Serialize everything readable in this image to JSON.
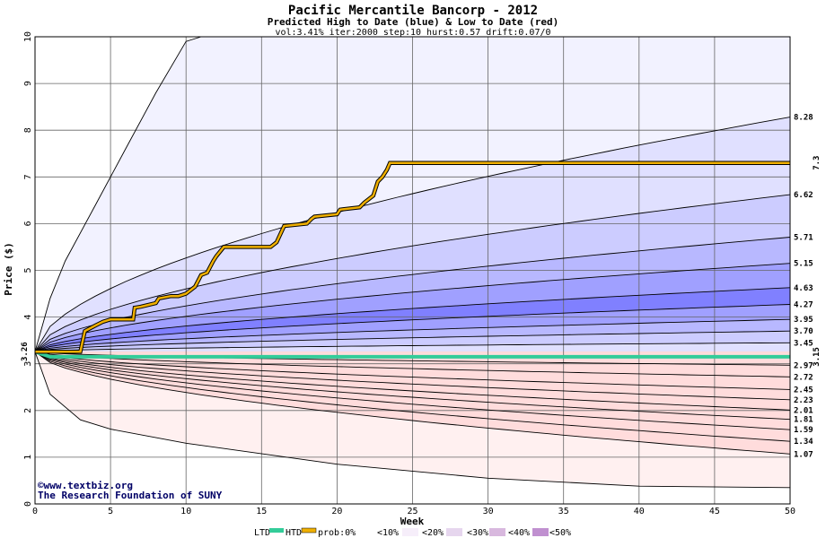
{
  "header": {
    "title": "Pacific Mercantile Bancorp - 2012",
    "subtitle": "Predicted High to Date (blue) &  Low to Date (red)",
    "params": "vol:3.41% iter:2000 step:10 hurst:0.57 drift:0.07/0"
  },
  "credits": {
    "line1": "©www.textbiz.org",
    "line2": "The Research Foundation of SUNY"
  },
  "legend": {
    "ltd": "LTD",
    "htd": "HTD",
    "prob": "prob:0%",
    "p10": "<10%",
    "p20": "<20%",
    "p30": "<30%",
    "p40": "<40%",
    "p50": "<50%"
  },
  "colors": {
    "htd_line": "#f0b000",
    "ltd_line": "#33cc99",
    "blue_bands": [
      "#f2f2ff",
      "#e0e0ff",
      "#ccccff",
      "#b8b8ff",
      "#a0a0ff",
      "#8080ff"
    ],
    "red_bands": [
      "#fff0f0",
      "#ffdcdc",
      "#ffc8c8",
      "#ffb0b0",
      "#ff9494",
      "#ff7878"
    ],
    "htd_value": "#b08000",
    "ltd_value": "#008866"
  },
  "chart_data": {
    "type": "area",
    "title": "Pacific Mercantile Bancorp - 2012",
    "subtitle": "Predicted High to Date (blue) &  Low to Date (red)",
    "xlabel": "Week",
    "ylabel": "Price ($)",
    "xlim": [
      0,
      50
    ],
    "ylim": [
      0,
      10
    ],
    "xticks": [
      0,
      5,
      10,
      15,
      20,
      25,
      30,
      35,
      40,
      45,
      50
    ],
    "yticks": [
      0,
      1,
      2,
      3,
      4,
      5,
      6,
      7,
      8,
      9,
      10
    ],
    "grid": true,
    "start_price": 3.26,
    "start_label": "3.26",
    "high_quantiles": [
      {
        "label": "8.28",
        "end": 8.28
      },
      {
        "label": "6.62",
        "end": 6.62
      },
      {
        "label": "5.71",
        "end": 5.71
      },
      {
        "label": "5.15",
        "end": 5.15
      },
      {
        "label": "4.63",
        "end": 4.63
      },
      {
        "label": "4.27",
        "end": 4.27
      },
      {
        "label": "3.95",
        "end": 3.95
      },
      {
        "label": "3.70",
        "end": 3.7
      },
      {
        "label": "3.45",
        "end": 3.45
      }
    ],
    "low_quantiles": [
      {
        "label": "2.97",
        "end": 2.97
      },
      {
        "label": "2.72",
        "end": 2.72
      },
      {
        "label": "2.45",
        "end": 2.45
      },
      {
        "label": "2.23",
        "end": 2.23
      },
      {
        "label": "2.01",
        "end": 2.01
      },
      {
        "label": "1.81",
        "end": 1.81
      },
      {
        "label": "1.59",
        "end": 1.59
      },
      {
        "label": "1.34",
        "end": 1.34
      },
      {
        "label": "1.07",
        "end": 1.07
      }
    ],
    "outer_high": {
      "x": [
        0,
        1,
        2,
        4,
        6,
        8,
        10,
        11
      ],
      "y": [
        3.26,
        4.4,
        5.2,
        6.4,
        7.6,
        8.8,
        9.9,
        10.0
      ]
    },
    "outer_low": {
      "x": [
        0,
        1,
        3,
        5,
        10,
        20,
        30,
        40,
        50
      ],
      "y": [
        3.26,
        2.35,
        1.8,
        1.6,
        1.3,
        0.85,
        0.55,
        0.38,
        0.35
      ]
    },
    "htd_line": {
      "name": "HTD",
      "value_label": "7.3",
      "x": [
        0,
        3,
        3.3,
        4,
        4.5,
        5,
        6.5,
        6.6,
        7,
        8,
        8.2,
        9,
        9.5,
        10,
        10.6,
        11,
        11.4,
        11.8,
        12,
        12.5,
        13,
        15.6,
        16,
        16.5,
        18,
        18.3,
        18.5,
        20,
        20.2,
        21.5,
        21.8,
        22.4,
        22.7,
        23,
        23.3,
        23.5,
        50
      ],
      "y": [
        3.26,
        3.26,
        3.7,
        3.82,
        3.9,
        3.95,
        3.95,
        4.2,
        4.22,
        4.3,
        4.4,
        4.45,
        4.45,
        4.5,
        4.65,
        4.9,
        4.95,
        5.2,
        5.3,
        5.5,
        5.5,
        5.5,
        5.6,
        5.95,
        6.0,
        6.1,
        6.15,
        6.2,
        6.3,
        6.35,
        6.45,
        6.6,
        6.9,
        7.0,
        7.15,
        7.3,
        7.3
      ]
    },
    "ltd_line": {
      "name": "LTD",
      "value_label": "3.15",
      "x": [
        0,
        1,
        50
      ],
      "y": [
        3.26,
        3.15,
        3.15
      ]
    }
  }
}
